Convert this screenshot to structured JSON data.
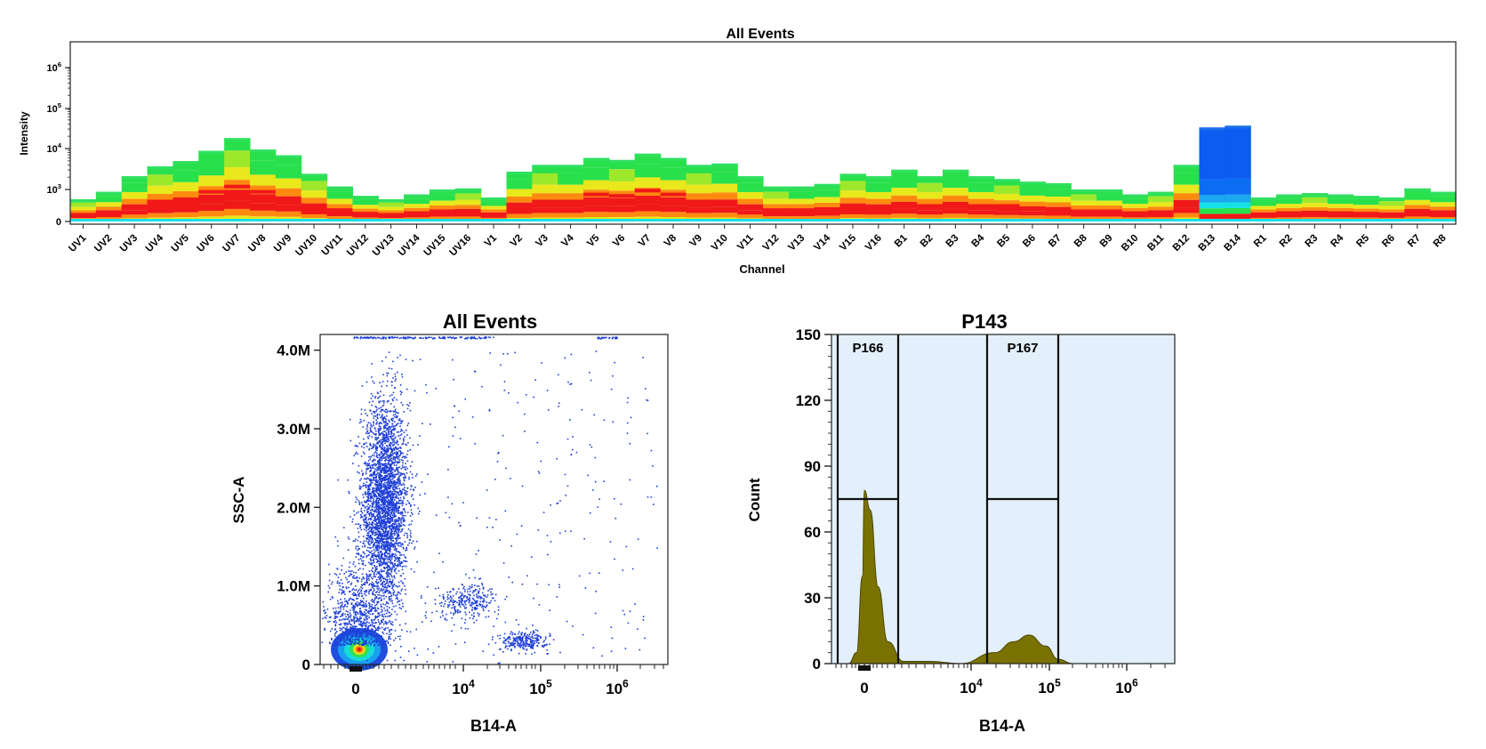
{
  "chart_data": [
    {
      "type": "heatmap",
      "title": "All Events",
      "xlabel": "Channel",
      "ylabel": "Intensity",
      "y_scale": "log",
      "y_ticks": [
        "0",
        "10^3",
        "10^4",
        "10^5",
        "10^6"
      ],
      "categories": [
        "UV1",
        "UV2",
        "UV3",
        "UV4",
        "UV5",
        "UV6",
        "UV7",
        "UV8",
        "UV9",
        "UV10",
        "UV11",
        "UV12",
        "UV13",
        "UV14",
        "UV15",
        "UV16",
        "V1",
        "V2",
        "V3",
        "V4",
        "V5",
        "V6",
        "V7",
        "V8",
        "V9",
        "V10",
        "V11",
        "V12",
        "V13",
        "V14",
        "V15",
        "V16",
        "B1",
        "B2",
        "B3",
        "B4",
        "B5",
        "B6",
        "B7",
        "B8",
        "B9",
        "B10",
        "B11",
        "B12",
        "B13",
        "B14",
        "R1",
        "R2",
        "R3",
        "R4",
        "R5",
        "R6",
        "R7",
        "R8"
      ],
      "peak_intensity": [
        1000,
        1500,
        3500,
        6000,
        8000,
        14000,
        28000,
        15000,
        11000,
        4000,
        2000,
        1200,
        1000,
        1300,
        1700,
        1800,
        1100,
        4500,
        6500,
        6500,
        9500,
        8500,
        12000,
        9500,
        6500,
        7000,
        3500,
        2000,
        2000,
        2300,
        4000,
        3500,
        5000,
        3500,
        5000,
        3500,
        3000,
        2600,
        2400,
        1700,
        1700,
        1300,
        1500,
        6500,
        50000,
        55000,
        1100,
        1300,
        1400,
        1300,
        1200,
        1100,
        1800,
        1500
      ],
      "median_intensity": [
        300,
        400,
        600,
        900,
        1000,
        1500,
        2000,
        1500,
        1000,
        600,
        400,
        300,
        300,
        300,
        350,
        350,
        300,
        700,
        900,
        900,
        1300,
        1200,
        1600,
        1300,
        900,
        900,
        600,
        400,
        400,
        450,
        500,
        500,
        800,
        700,
        800,
        700,
        700,
        600,
        500,
        400,
        400,
        350,
        350,
        500,
        600,
        600,
        300,
        350,
        350,
        350,
        300,
        300,
        400,
        350
      ],
      "highlight_color": "#0b5cf0"
    },
    {
      "type": "scatter",
      "title": "All Events",
      "xlabel": "B14-A",
      "ylabel": "SSC-A",
      "x_scale": "biexponential",
      "x_ticks": [
        "0",
        "10^4",
        "10^5",
        "10^6"
      ],
      "y_ticks": [
        "0",
        "1.0M",
        "2.0M",
        "3.0M",
        "4.0M"
      ],
      "ylim": [
        0,
        4200000
      ],
      "point_color": "#1f3fd6",
      "populations": [
        {
          "name": "",
          "x_center": 0,
          "y_center": 200000,
          "count": 1200
        },
        {
          "name": "",
          "x_center": 1500,
          "y_center": 2100000,
          "count": 3200
        },
        {
          "name": "",
          "x_center": 12000,
          "y_center": 800000,
          "count": 280
        },
        {
          "name": "",
          "x_center": 60000,
          "y_center": 300000,
          "count": 260
        }
      ]
    },
    {
      "type": "area",
      "title": "P143",
      "xlabel": "B14-A",
      "ylabel": "Count",
      "x_scale": "biexponential",
      "x_ticks": [
        "0",
        "10^4",
        "10^5",
        "10^6"
      ],
      "y_ticks": [
        "0",
        "30",
        "60",
        "90",
        "120",
        "150"
      ],
      "ylim": [
        0,
        150
      ],
      "fill_color": "#7a7200",
      "background_color": "#e3f0fb",
      "gates": [
        {
          "name": "P166",
          "y_level": 75
        },
        {
          "name": "P167",
          "y_level": 75
        }
      ],
      "histogram": [
        {
          "x": "-800",
          "y": 0
        },
        {
          "x": "-400",
          "y": 5
        },
        {
          "x": "-100",
          "y": 40
        },
        {
          "x": "0",
          "y": 79
        },
        {
          "x": "300",
          "y": 70
        },
        {
          "x": "700",
          "y": 35
        },
        {
          "x": "1200",
          "y": 10
        },
        {
          "x": "2000",
          "y": 1
        },
        {
          "x": "4000",
          "y": 1
        },
        {
          "x": "8000",
          "y": 0
        },
        {
          "x": "20000",
          "y": 5
        },
        {
          "x": "35000",
          "y": 10
        },
        {
          "x": "55000",
          "y": 13
        },
        {
          "x": "90000",
          "y": 8
        },
        {
          "x": "130000",
          "y": 2
        },
        {
          "x": "200000",
          "y": 0
        }
      ]
    }
  ]
}
